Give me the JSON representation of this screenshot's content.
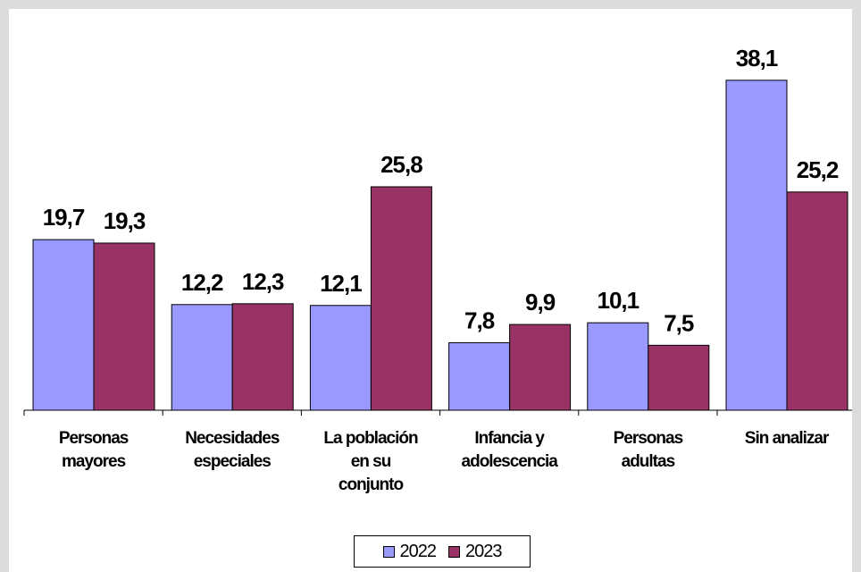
{
  "chart_data": {
    "type": "bar",
    "categories": [
      [
        "Personas",
        "mayores"
      ],
      [
        "Necesidades",
        "especiales"
      ],
      [
        "La población",
        "en su",
        "conjunto"
      ],
      [
        "Infancia y",
        "adolescencia"
      ],
      [
        "Personas",
        "adultas"
      ],
      [
        "Sin analizar"
      ]
    ],
    "series": [
      {
        "name": "2022",
        "color": "#9999ff",
        "values": [
          19.7,
          12.2,
          12.1,
          7.8,
          10.1,
          38.1
        ],
        "labels": [
          "19,7",
          "12,2",
          "12,1",
          "7,8",
          "10,1",
          "38,1"
        ]
      },
      {
        "name": "2023",
        "color": "#993366",
        "values": [
          19.3,
          12.3,
          25.8,
          9.9,
          7.5,
          25.2
        ],
        "labels": [
          "19,3",
          "12,3",
          "25,8",
          "9,9",
          "7,5",
          "25,2"
        ]
      }
    ],
    "ylim": [
      0,
      41
    ],
    "grid": false,
    "legend": "bottom-center"
  }
}
